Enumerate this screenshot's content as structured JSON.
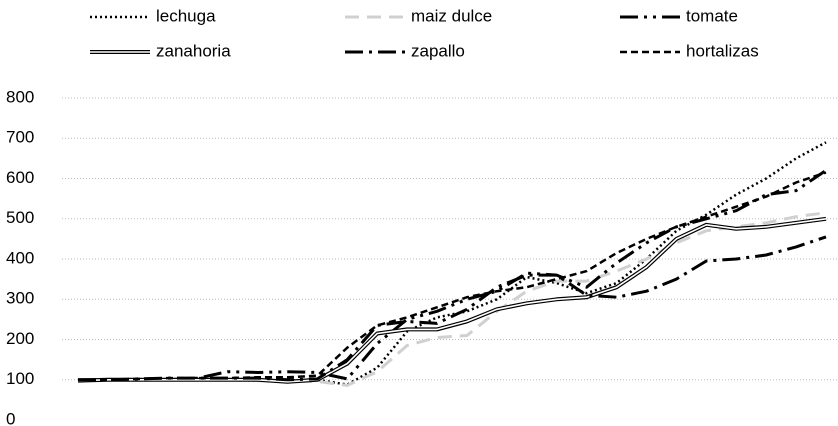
{
  "chart_data": {
    "type": "line",
    "categories": [
      null,
      null,
      null,
      null,
      null,
      null,
      null,
      null,
      null,
      null,
      null,
      null,
      null,
      null,
      null,
      null,
      null,
      null,
      null,
      null,
      null,
      null,
      null,
      null,
      null,
      null
    ],
    "series": [
      {
        "name": "lechuga",
        "color": "#000000",
        "dash": "2,3",
        "width": 2.5,
        "values": [
          100,
          100,
          100,
          100,
          100,
          100,
          98,
          98,
          100,
          88,
          130,
          220,
          255,
          270,
          300,
          355,
          340,
          315,
          340,
          400,
          470,
          510,
          560,
          600,
          650,
          690
        ]
      },
      {
        "name": "maiz dulce",
        "color": "#d0d0d0",
        "dash": "14,8",
        "width": 3,
        "values": [
          98,
          100,
          100,
          100,
          100,
          100,
          98,
          96,
          96,
          86,
          120,
          185,
          205,
          210,
          270,
          320,
          345,
          345,
          370,
          400,
          440,
          470,
          480,
          490,
          505,
          515
        ]
      },
      {
        "name": "tomate",
        "color": "#000000",
        "dash": "18,6,3,6,3,6",
        "width": 3,
        "values": [
          100,
          100,
          100,
          100,
          104,
          120,
          118,
          120,
          118,
          102,
          190,
          250,
          270,
          300,
          320,
          365,
          360,
          330,
          390,
          440,
          480,
          500,
          520,
          560,
          570,
          620
        ]
      },
      {
        "name": "zanahoria",
        "color": "#000000",
        "dash": "double",
        "width": 4,
        "values": [
          98,
          100,
          100,
          100,
          100,
          100,
          100,
          95,
          100,
          140,
          215,
          225,
          225,
          245,
          275,
          290,
          300,
          305,
          330,
          380,
          450,
          485,
          475,
          480,
          490,
          500
        ]
      },
      {
        "name": "zapallo",
        "color": "#000000",
        "dash": "18,6,3,6",
        "width": 3,
        "values": [
          100,
          100,
          102,
          104,
          104,
          104,
          104,
          100,
          102,
          150,
          235,
          245,
          240,
          275,
          330,
          360,
          360,
          310,
          305,
          320,
          350,
          395,
          400,
          410,
          430,
          455
        ]
      },
      {
        "name": "hortalizas",
        "color": "#000000",
        "dash": "7,4",
        "width": 2.5,
        "values": [
          100,
          100,
          102,
          104,
          104,
          104,
          106,
          106,
          110,
          180,
          235,
          255,
          280,
          305,
          320,
          330,
          350,
          370,
          415,
          450,
          480,
          505,
          530,
          555,
          590,
          615
        ]
      }
    ],
    "ylim": [
      0,
      800
    ],
    "yticks": [
      0,
      100,
      200,
      300,
      400,
      500,
      600,
      700,
      800
    ],
    "grid": true
  }
}
